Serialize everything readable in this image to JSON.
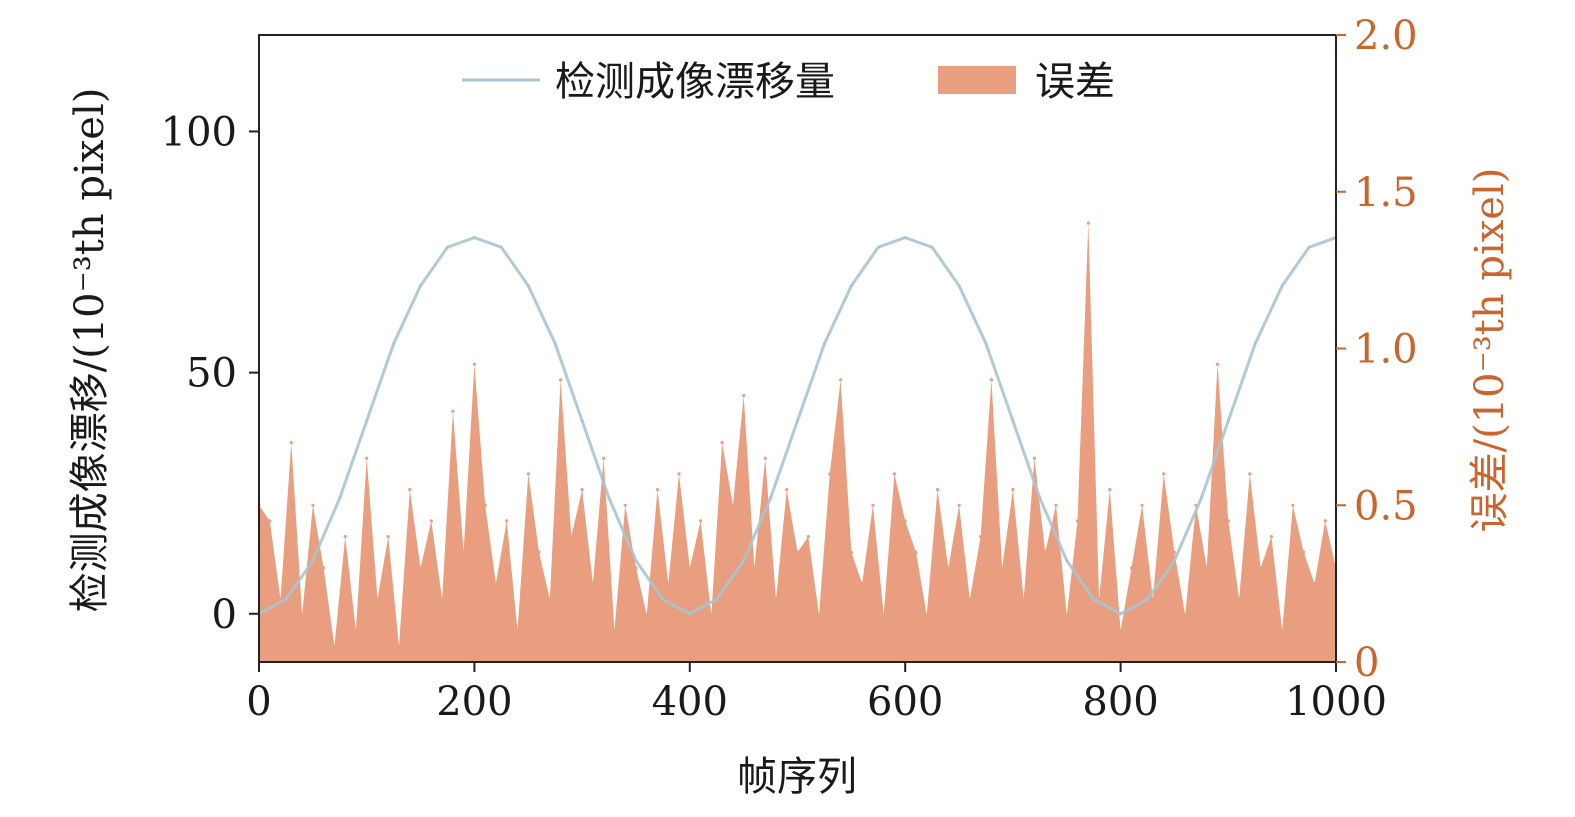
{
  "chart_data": {
    "type": "area",
    "xlabel": "帧序列",
    "ylabel_left": "检测成像漂移/(10⁻³th pixel)",
    "ylabel_right": "误差/(10⁻³th pixel)",
    "xlim": [
      0,
      1000
    ],
    "ylim_left": [
      -10,
      120
    ],
    "ylim_right": [
      0,
      2.0
    ],
    "x_ticks": [
      "0",
      "200",
      "400",
      "600",
      "800",
      "1000"
    ],
    "y_ticks_left": [
      "0",
      "50",
      "100"
    ],
    "y_ticks_right": [
      "0",
      "0.5",
      "1.0",
      "1.5",
      "2.0"
    ],
    "grid": false,
    "legend_position": "top-center",
    "colors": {
      "drift_line": "#a9c4d0",
      "error_fill": "#e89e7f",
      "right_axis": "#c9652d"
    },
    "series": [
      {
        "name": "检测成像漂移量",
        "type": "line",
        "axis": "left",
        "x": [
          0,
          25,
          50,
          75,
          100,
          125,
          150,
          175,
          200,
          225,
          250,
          275,
          300,
          325,
          350,
          375,
          400,
          425,
          450,
          475,
          500,
          525,
          550,
          575,
          600,
          625,
          650,
          675,
          700,
          725,
          750,
          775,
          800,
          825,
          850,
          875,
          900,
          925,
          950,
          975,
          1000
        ],
        "values": [
          0,
          3,
          11,
          24,
          40,
          56,
          68,
          76,
          78,
          76,
          68,
          56,
          40,
          24,
          11,
          3,
          0,
          3,
          11,
          24,
          40,
          56,
          68,
          76,
          78,
          76,
          68,
          56,
          40,
          24,
          11,
          3,
          0,
          3,
          11,
          24,
          40,
          56,
          68,
          76,
          78
        ]
      },
      {
        "name": "误差",
        "type": "area",
        "axis": "right",
        "x": [
          0,
          10,
          20,
          30,
          40,
          50,
          60,
          70,
          80,
          90,
          100,
          110,
          120,
          130,
          140,
          150,
          160,
          170,
          180,
          190,
          200,
          210,
          220,
          230,
          240,
          250,
          260,
          270,
          280,
          290,
          300,
          310,
          320,
          330,
          340,
          350,
          360,
          370,
          380,
          390,
          400,
          410,
          420,
          430,
          440,
          450,
          460,
          470,
          480,
          490,
          500,
          510,
          520,
          530,
          540,
          550,
          560,
          570,
          580,
          590,
          600,
          610,
          620,
          630,
          640,
          650,
          660,
          670,
          680,
          690,
          700,
          710,
          720,
          730,
          740,
          750,
          760,
          770,
          780,
          790,
          800,
          810,
          820,
          830,
          840,
          850,
          860,
          870,
          880,
          890,
          900,
          910,
          920,
          930,
          940,
          950,
          960,
          970,
          980,
          990,
          1000
        ],
        "values": [
          0.5,
          0.45,
          0.2,
          0.7,
          0.15,
          0.5,
          0.3,
          0.05,
          0.4,
          0.1,
          0.65,
          0.2,
          0.4,
          0.05,
          0.55,
          0.3,
          0.45,
          0.2,
          0.8,
          0.35,
          0.95,
          0.5,
          0.25,
          0.45,
          0.1,
          0.6,
          0.35,
          0.2,
          0.9,
          0.4,
          0.55,
          0.25,
          0.65,
          0.1,
          0.5,
          0.3,
          0.15,
          0.55,
          0.25,
          0.6,
          0.3,
          0.45,
          0.15,
          0.7,
          0.5,
          0.85,
          0.3,
          0.65,
          0.2,
          0.55,
          0.35,
          0.4,
          0.15,
          0.6,
          0.9,
          0.35,
          0.25,
          0.5,
          0.15,
          0.6,
          0.45,
          0.35,
          0.15,
          0.55,
          0.3,
          0.5,
          0.2,
          0.4,
          0.9,
          0.3,
          0.55,
          0.2,
          0.65,
          0.35,
          0.5,
          0.15,
          0.45,
          1.4,
          0.2,
          0.55,
          0.1,
          0.3,
          0.5,
          0.2,
          0.6,
          0.35,
          0.15,
          0.5,
          0.3,
          0.95,
          0.45,
          0.2,
          0.6,
          0.3,
          0.4,
          0.1,
          0.5,
          0.35,
          0.25,
          0.45,
          0.3
        ]
      }
    ]
  }
}
